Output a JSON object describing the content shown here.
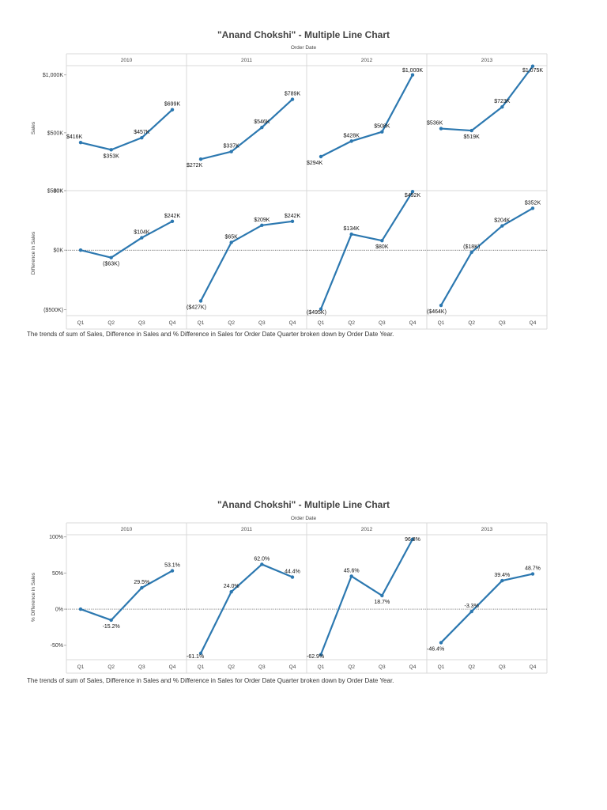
{
  "panels": [
    {
      "title": "\"Anand Chokshi\" - Multiple Line Chart",
      "column_header": "Order Date",
      "caption": "The trends of sum of Sales, Difference in Sales and % Difference in Sales for Order Date Quarter broken down by Order Date Year."
    },
    {
      "title": "\"Anand Chokshi\" - Multiple Line Chart",
      "column_header": "Order Date",
      "caption": "The trends of sum of Sales, Difference in Sales and % Difference in Sales for Order Date Quarter broken down by Order Date Year."
    }
  ],
  "chart_data": [
    {
      "type": "line",
      "title": "\"Anand Chokshi\" - Multiple Line Chart",
      "column_header": "Order Date",
      "years": [
        "2010",
        "2011",
        "2012",
        "2013"
      ],
      "categories": [
        "Q1",
        "Q2",
        "Q3",
        "Q4"
      ],
      "color": "#2c78b0",
      "rows": [
        {
          "ylabel": "Sales",
          "ylim": [
            0,
            1080
          ],
          "ticks": [
            {
              "value": 0,
              "label": "$0K"
            },
            {
              "value": 500,
              "label": "$500K"
            },
            {
              "value": 1000,
              "label": "$1,000K"
            }
          ],
          "zero_line": false,
          "series": [
            {
              "year": "2010",
              "values": [
                416,
                353,
                457,
                699
              ],
              "labels": [
                "$416K",
                "$353K",
                "$457K",
                "$699K"
              ]
            },
            {
              "year": "2011",
              "values": [
                272,
                337,
                546,
                789
              ],
              "labels": [
                "$272K",
                "$337K",
                "$546K",
                "$789K"
              ]
            },
            {
              "year": "2012",
              "values": [
                294,
                428,
                508,
                1000
              ],
              "labels": [
                "$294K",
                "$428K",
                "$508K",
                "$1,000K"
              ]
            },
            {
              "year": "2013",
              "values": [
                536,
                519,
                723,
                1075
              ],
              "labels": [
                "$536K",
                "$519K",
                "$723K",
                "$1,075K"
              ]
            }
          ]
        },
        {
          "ylabel": "Difference in Sales",
          "ylim": [
            -550,
            500
          ],
          "ticks": [
            {
              "value": -500,
              "label": "($500K)"
            },
            {
              "value": 0,
              "label": "$0K"
            },
            {
              "value": 500,
              "label": "$500K"
            }
          ],
          "zero_line": true,
          "series": [
            {
              "year": "2010",
              "values": [
                0,
                -63,
                104,
                242
              ],
              "labels": [
                "",
                "($63K)",
                "$104K",
                "$242K"
              ]
            },
            {
              "year": "2011",
              "values": [
                -427,
                65,
                209,
                242
              ],
              "labels": [
                "($427K)",
                "$65K",
                "$209K",
                "$242K"
              ]
            },
            {
              "year": "2012",
              "values": [
                -495,
                134,
                80,
                492
              ],
              "labels": [
                "($495K)",
                "$134K",
                "$80K",
                "$492K"
              ]
            },
            {
              "year": "2013",
              "values": [
                -464,
                -18,
                204,
                352
              ],
              "labels": [
                "($464K)",
                "($18K)",
                "$204K",
                "$352K"
              ]
            }
          ]
        }
      ]
    },
    {
      "type": "line",
      "title": "\"Anand Chokshi\" - Multiple Line Chart",
      "column_header": "Order Date",
      "years": [
        "2010",
        "2011",
        "2012",
        "2013"
      ],
      "categories": [
        "Q1",
        "Q2",
        "Q3",
        "Q4"
      ],
      "color": "#2c78b0",
      "rows": [
        {
          "ylabel": "% Difference in Sales",
          "ylim": [
            -70,
            103
          ],
          "ticks": [
            {
              "value": -50,
              "label": "-50%"
            },
            {
              "value": 0,
              "label": "0%"
            },
            {
              "value": 50,
              "label": "50%"
            },
            {
              "value": 100,
              "label": "100%"
            }
          ],
          "zero_line": true,
          "series": [
            {
              "year": "2010",
              "values": [
                0,
                -15.2,
                29.5,
                53.1
              ],
              "labels": [
                "",
                "-15.2%",
                "29.5%",
                "53.1%"
              ]
            },
            {
              "year": "2011",
              "values": [
                -61.1,
                24.0,
                62.0,
                44.4
              ],
              "labels": [
                "-61.1%",
                "24.0%",
                "62.0%",
                "44.4%"
              ]
            },
            {
              "year": "2012",
              "values": [
                -62.9,
                45.6,
                18.7,
                96.8
              ],
              "labels": [
                "-62.9%",
                "45.6%",
                "18.7%",
                "96.8%"
              ]
            },
            {
              "year": "2013",
              "values": [
                -46.4,
                -3.3,
                39.4,
                48.7
              ],
              "labels": [
                "-46.4%",
                "-3.3%",
                "39.4%",
                "48.7%"
              ]
            }
          ]
        }
      ]
    }
  ]
}
